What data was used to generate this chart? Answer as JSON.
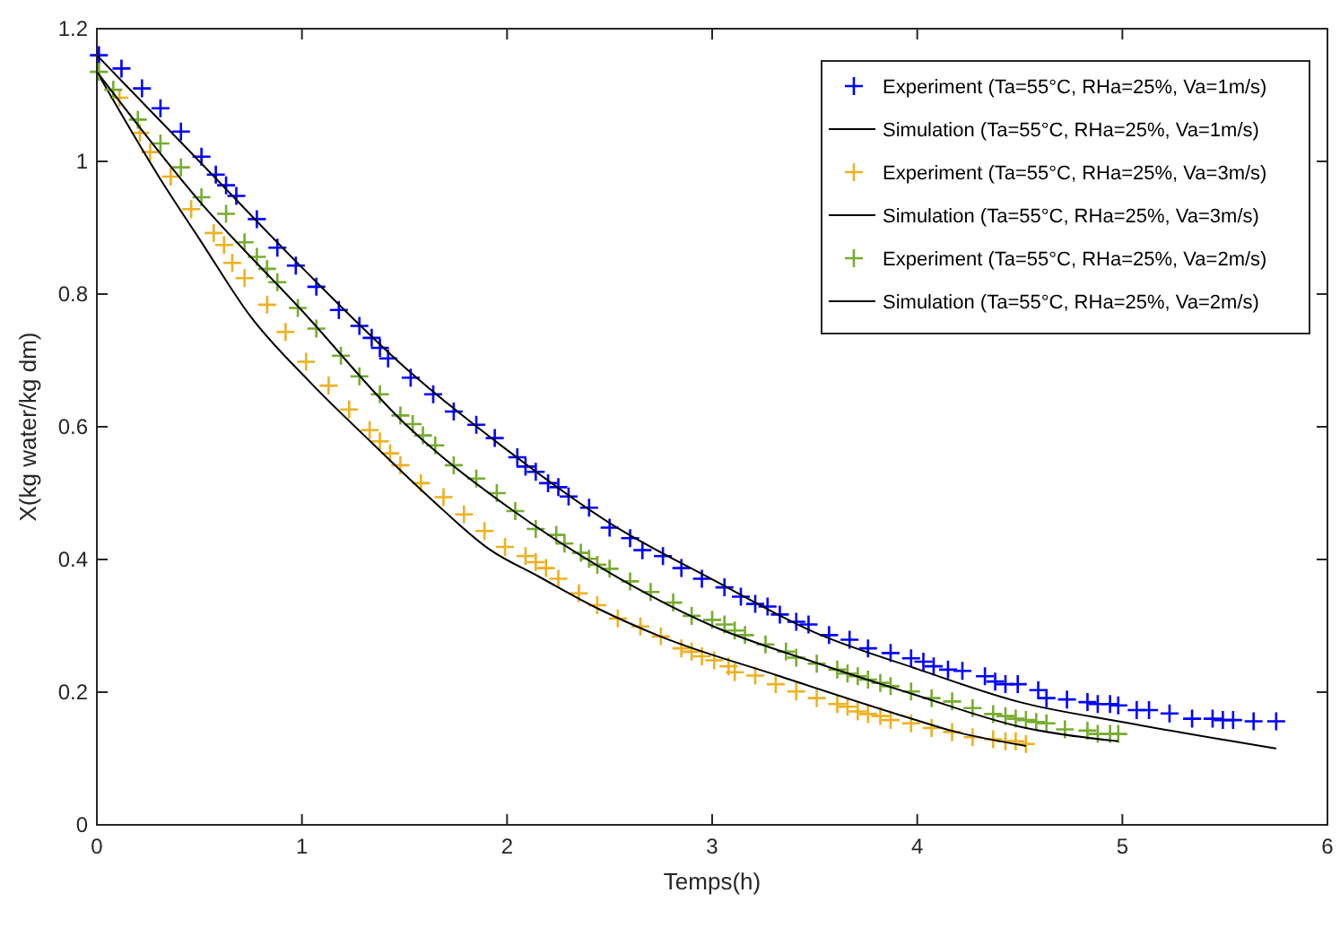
{
  "chart_data": {
    "type": "scatter",
    "xlabel": "Temps(h)",
    "ylabel": "X(kg water/kg dm)",
    "xlim": [
      0,
      6
    ],
    "xticks": [
      0,
      1,
      2,
      3,
      4,
      5,
      6
    ],
    "ylim": [
      0,
      1.2
    ],
    "yticks": [
      0,
      0.2,
      0.4,
      0.6,
      0.8,
      1,
      1.2
    ],
    "grid": false,
    "legend": "top right",
    "series": [
      {
        "name": "Experiment (Ta=55°C, RHa=25%, Va=1m/s)",
        "marker": "cross",
        "color": "#0000ff",
        "x": [
          0.01,
          0.12,
          0.22,
          0.31,
          0.41,
          0.51,
          0.58,
          0.63,
          0.68,
          0.78,
          0.88,
          0.97,
          1.07,
          1.18,
          1.28,
          1.34,
          1.38,
          1.42,
          1.53,
          1.64,
          1.74,
          1.85,
          1.94,
          2.05,
          2.09,
          2.14,
          2.2,
          2.25,
          2.3,
          2.4,
          2.5,
          2.6,
          2.66,
          2.76,
          2.85,
          2.95,
          3.06,
          3.14,
          3.21,
          3.27,
          3.33,
          3.41,
          3.47,
          3.57,
          3.67,
          3.76,
          3.87,
          3.97,
          4.03,
          4.08,
          4.15,
          4.22,
          4.33,
          4.38,
          4.43,
          4.49,
          4.59,
          4.63,
          4.73,
          4.83,
          4.88,
          4.94,
          4.98,
          5.07,
          5.13,
          5.23,
          5.34,
          5.44,
          5.49,
          5.54,
          5.64,
          5.75
        ],
        "values": [
          1.16,
          1.14,
          1.11,
          1.08,
          1.045,
          1.007,
          0.98,
          0.964,
          0.948,
          0.913,
          0.87,
          0.843,
          0.811,
          0.776,
          0.752,
          0.734,
          0.719,
          0.703,
          0.674,
          0.649,
          0.623,
          0.603,
          0.583,
          0.554,
          0.54,
          0.532,
          0.515,
          0.509,
          0.495,
          0.478,
          0.448,
          0.432,
          0.414,
          0.405,
          0.387,
          0.371,
          0.358,
          0.344,
          0.333,
          0.329,
          0.317,
          0.306,
          0.302,
          0.286,
          0.279,
          0.266,
          0.259,
          0.251,
          0.246,
          0.239,
          0.234,
          0.232,
          0.224,
          0.216,
          0.212,
          0.212,
          0.203,
          0.191,
          0.189,
          0.185,
          0.182,
          0.182,
          0.18,
          0.173,
          0.173,
          0.168,
          0.16,
          0.16,
          0.158,
          0.158,
          0.156,
          0.156
        ]
      },
      {
        "name": "Simulation (Ta=55°C, RHa=25%, Va=1m/s)",
        "type": "line",
        "marker": "none",
        "line_style": "solid",
        "color": "#000000",
        "x": [
          0,
          0.5,
          1,
          1.5,
          2,
          2.5,
          3,
          3.5,
          4,
          4.5,
          5,
          5.5,
          5.75
        ],
        "values": [
          1.16,
          1,
          0.84,
          0.69,
          0.565,
          0.455,
          0.37,
          0.29,
          0.235,
          0.185,
          0.155,
          0.128,
          0.115
        ]
      },
      {
        "name": "Experiment (Ta=55°C, RHa=25%, Va=3m/s)",
        "marker": "cross",
        "color": "#edb120",
        "x": [
          0.11,
          0.21,
          0.26,
          0.36,
          0.46,
          0.57,
          0.62,
          0.66,
          0.72,
          0.83,
          0.92,
          1.02,
          1.13,
          1.23,
          1.33,
          1.38,
          1.43,
          1.48,
          1.58,
          1.69,
          1.79,
          1.89,
          1.99,
          2.09,
          2.14,
          2.19,
          2.25,
          2.35,
          2.44,
          2.54,
          2.65,
          2.75,
          2.85,
          2.9,
          2.95,
          3.01,
          3.08,
          3.11,
          3.21,
          3.31,
          3.41,
          3.51,
          3.61,
          3.66,
          3.71,
          3.76,
          3.82,
          3.87,
          3.97,
          4.07,
          4.17,
          4.27,
          4.37,
          4.43,
          4.48,
          4.53
        ],
        "values": [
          1.096,
          1.043,
          1.014,
          0.977,
          0.928,
          0.892,
          0.874,
          0.847,
          0.824,
          0.784,
          0.743,
          0.698,
          0.662,
          0.626,
          0.595,
          0.578,
          0.56,
          0.542,
          0.515,
          0.494,
          0.468,
          0.443,
          0.419,
          0.405,
          0.396,
          0.387,
          0.371,
          0.349,
          0.331,
          0.311,
          0.299,
          0.284,
          0.266,
          0.261,
          0.254,
          0.248,
          0.239,
          0.23,
          0.225,
          0.212,
          0.201,
          0.191,
          0.182,
          0.178,
          0.171,
          0.167,
          0.164,
          0.158,
          0.153,
          0.146,
          0.14,
          0.132,
          0.129,
          0.126,
          0.126,
          0.122
        ]
      },
      {
        "name": "Simulation (Ta=55°C, RHa=25%, Va=3m/s)",
        "type": "line",
        "marker": "none",
        "line_style": "solid",
        "color": "#000000",
        "x": [
          0,
          0.31,
          0.5,
          0.75,
          1.04,
          1.34,
          1.63,
          1.92,
          2.15,
          2.45,
          2.74,
          3.32,
          3.9,
          4.19,
          4.53
        ],
        "values": [
          1.135,
          0.973,
          0.883,
          0.766,
          0.667,
          0.576,
          0.491,
          0.414,
          0.375,
          0.325,
          0.285,
          0.225,
          0.167,
          0.14,
          0.119
        ]
      },
      {
        "name": "Experiment (Ta=55°C, RHa=25%, Va=2m/s)",
        "marker": "cross",
        "color": "#77ac30",
        "x": [
          0.01,
          0.08,
          0.2,
          0.31,
          0.41,
          0.51,
          0.63,
          0.72,
          0.78,
          0.83,
          0.88,
          0.98,
          1.07,
          1.19,
          1.28,
          1.38,
          1.48,
          1.54,
          1.59,
          1.65,
          1.74,
          1.85,
          1.95,
          2.04,
          2.14,
          2.24,
          2.28,
          2.36,
          2.4,
          2.44,
          2.5,
          2.6,
          2.7,
          2.81,
          2.9,
          3,
          3.06,
          3.11,
          3.16,
          3.26,
          3.36,
          3.41,
          3.51,
          3.61,
          3.66,
          3.71,
          3.76,
          3.82,
          3.87,
          3.97,
          4.07,
          4.17,
          4.27,
          4.37,
          4.43,
          4.48,
          4.53,
          4.58,
          4.63,
          4.72,
          4.83,
          4.88,
          4.94,
          4.98
        ],
        "values": [
          1.135,
          1.108,
          1.063,
          1.027,
          0.991,
          0.946,
          0.921,
          0.878,
          0.856,
          0.838,
          0.818,
          0.779,
          0.748,
          0.707,
          0.676,
          0.649,
          0.617,
          0.604,
          0.587,
          0.572,
          0.542,
          0.522,
          0.5,
          0.473,
          0.446,
          0.437,
          0.424,
          0.41,
          0.401,
          0.392,
          0.386,
          0.367,
          0.351,
          0.335,
          0.315,
          0.309,
          0.302,
          0.293,
          0.286,
          0.272,
          0.261,
          0.252,
          0.243,
          0.234,
          0.228,
          0.224,
          0.219,
          0.214,
          0.209,
          0.201,
          0.191,
          0.186,
          0.176,
          0.167,
          0.164,
          0.16,
          0.158,
          0.155,
          0.153,
          0.144,
          0.142,
          0.137,
          0.137,
          0.137
        ]
      },
      {
        "name": "Simulation (Ta=55°C, RHa=25%, Va=2m/s)",
        "type": "line",
        "marker": "none",
        "line_style": "solid",
        "color": "#000000",
        "x": [
          0,
          0.5,
          1,
          1.5,
          2,
          2.5,
          3,
          3.5,
          4,
          4.5,
          4.98
        ],
        "values": [
          1.135,
          0.94,
          0.775,
          0.605,
          0.48,
          0.38,
          0.3,
          0.245,
          0.195,
          0.148,
          0.126
        ]
      }
    ]
  }
}
